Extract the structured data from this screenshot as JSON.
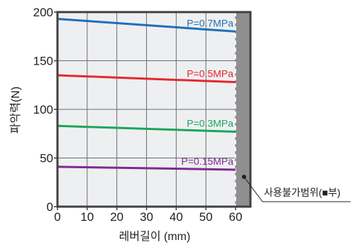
{
  "chart_data": {
    "type": "line",
    "xlabel": "레버길이 (mm)",
    "ylabel": "파악력(N)",
    "xlim": [
      0,
      65
    ],
    "ylim": [
      0,
      200
    ],
    "x_ticks": [
      0,
      10,
      20,
      30,
      40,
      50,
      60
    ],
    "y_ticks": [
      0,
      50,
      100,
      150,
      200
    ],
    "grid": true,
    "series": [
      {
        "name": "P=0.7MPa",
        "color": "#1d6fb8",
        "x": [
          0,
          60
        ],
        "y": [
          193,
          180
        ]
      },
      {
        "name": "P=0.5MPa",
        "color": "#e42831",
        "x": [
          0,
          60
        ],
        "y": [
          135,
          128
        ]
      },
      {
        "name": "P=0.3MPa",
        "color": "#1aa65a",
        "x": [
          0,
          60
        ],
        "y": [
          83,
          77
        ]
      },
      {
        "name": "P=0.15MPa",
        "color": "#7e2b8f",
        "x": [
          0,
          60
        ],
        "y": [
          41,
          38
        ]
      }
    ],
    "shaded_region": {
      "x": [
        60,
        65
      ],
      "color": "#8f8f91"
    },
    "annotation": "사용불가범위(■부)"
  }
}
